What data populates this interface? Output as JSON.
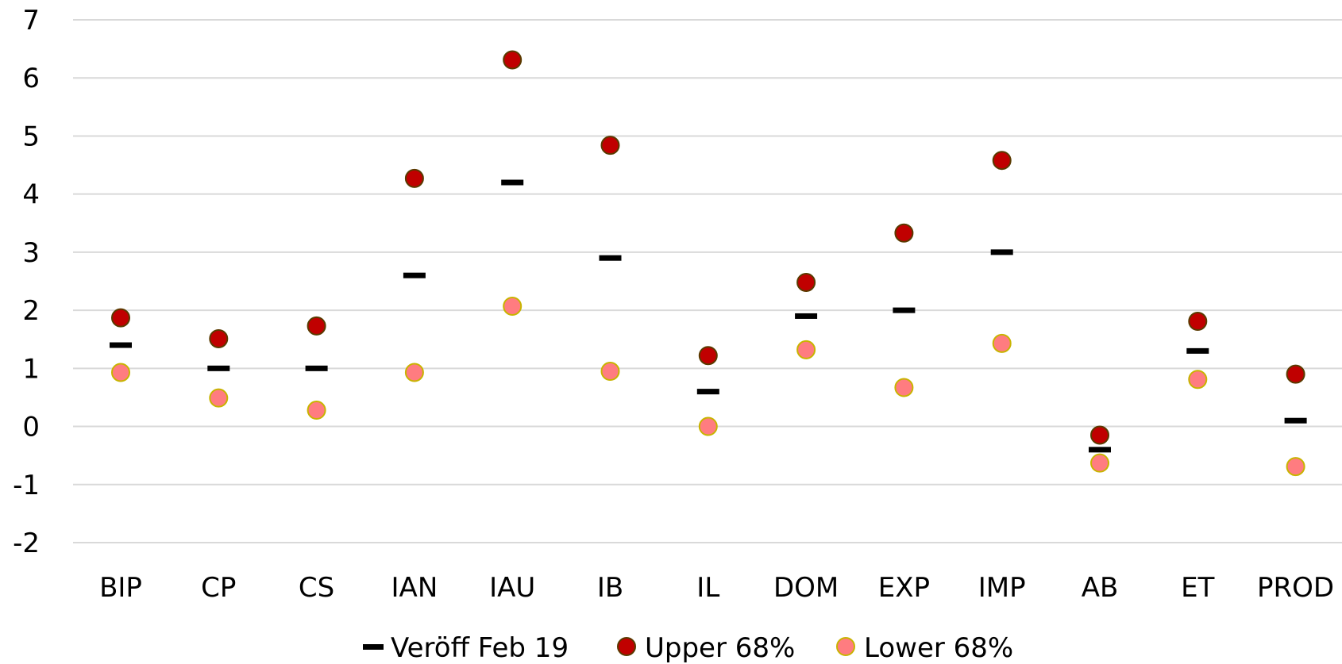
{
  "chart_data": {
    "type": "scatter",
    "categories": [
      "BIP",
      "CP",
      "CS",
      "IAN",
      "IAU",
      "IB",
      "IL",
      "DOM",
      "EXP",
      "IMP",
      "AB",
      "ET",
      "PROD"
    ],
    "series": [
      {
        "name": "Veröff Feb 19",
        "marker": "dash",
        "color": "#000000",
        "values": [
          1.4,
          1.0,
          1.0,
          2.6,
          4.2,
          2.9,
          0.6,
          1.9,
          2.0,
          3.0,
          -0.4,
          1.3,
          0.1
        ]
      },
      {
        "name": "Upper 68%",
        "marker": "circle",
        "color": "#c00000",
        "stroke": "#5a3a00",
        "values": [
          1.87,
          1.51,
          1.73,
          4.27,
          6.31,
          4.84,
          1.22,
          2.48,
          3.33,
          4.58,
          -0.15,
          1.81,
          0.9
        ]
      },
      {
        "name": "Lower 68%",
        "marker": "circle",
        "color": "#ff7c80",
        "stroke": "#c8b400",
        "values": [
          0.93,
          0.49,
          0.28,
          0.93,
          2.07,
          0.95,
          0.0,
          1.32,
          0.67,
          1.43,
          -0.63,
          0.81,
          -0.69
        ]
      }
    ],
    "ylim": [
      -2,
      7
    ],
    "yticks": [
      -2,
      -1,
      0,
      1,
      2,
      3,
      4,
      5,
      6,
      7
    ],
    "grid": true,
    "gridColor": "#d9d9d9",
    "legend": "bottom"
  }
}
